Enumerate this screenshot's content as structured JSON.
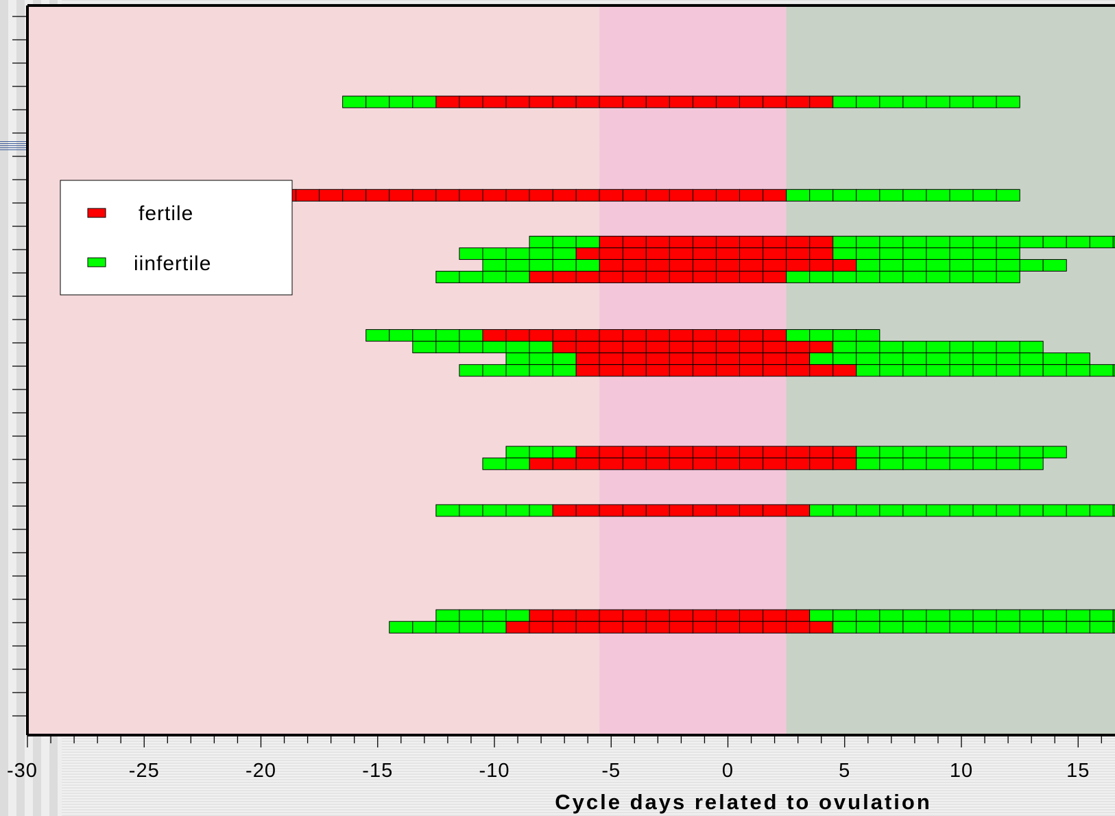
{
  "chart_data": {
    "type": "bar",
    "xlabel": "Cycle days related to ovulation",
    "xlim": [
      -30,
      17
    ],
    "x_ticks": [
      -30,
      -25,
      -20,
      -15,
      -10,
      -5,
      0,
      5,
      10,
      15
    ],
    "legend": {
      "placement": "upper-left",
      "entries": [
        {
          "label": "fertile",
          "color": "#ff0000"
        },
        {
          "label": "iinfertile",
          "color": "#00ff00"
        }
      ]
    },
    "background_zones": [
      {
        "from": -30,
        "to": -5.5,
        "color": "#f4d8da"
      },
      {
        "from": -5.5,
        "to": 2.5,
        "color": "#f4c6da"
      },
      {
        "from": 2.5,
        "to": 17,
        "color": "#c8d2c6"
      }
    ],
    "colors": {
      "fertile": "#ff0000",
      "infertile": "#00ff00",
      "axis": "#000000"
    },
    "rows": [
      {
        "row": 2,
        "segments": [
          {
            "start": -16,
            "end": -13,
            "type": "infertile"
          },
          {
            "start": -12,
            "end": 4,
            "type": "fertile"
          },
          {
            "start": 5,
            "end": 12,
            "type": "infertile"
          }
        ]
      },
      {
        "row": 6,
        "segments": [
          {
            "start": -27,
            "end": -23,
            "type": "infertile"
          },
          {
            "start": -22,
            "end": 2,
            "type": "fertile"
          },
          {
            "start": 3,
            "end": 12,
            "type": "infertile"
          }
        ]
      },
      {
        "row": 8,
        "segments": [
          {
            "start": -8,
            "end": -6,
            "type": "infertile"
          },
          {
            "start": -5,
            "end": 4,
            "type": "fertile"
          },
          {
            "start": 5,
            "end": 17,
            "type": "infertile"
          }
        ]
      },
      {
        "row": 8.5,
        "segments": [
          {
            "start": -11,
            "end": -7,
            "type": "infertile"
          },
          {
            "start": -6,
            "end": 4,
            "type": "fertile"
          },
          {
            "start": 5,
            "end": 12,
            "type": "infertile"
          }
        ]
      },
      {
        "row": 9,
        "segments": [
          {
            "start": -10,
            "end": -6,
            "type": "infertile"
          },
          {
            "start": -5,
            "end": 5,
            "type": "fertile"
          },
          {
            "start": 6,
            "end": 14,
            "type": "infertile"
          }
        ]
      },
      {
        "row": 9.5,
        "segments": [
          {
            "start": -12,
            "end": -9,
            "type": "infertile"
          },
          {
            "start": -8,
            "end": 2,
            "type": "fertile"
          },
          {
            "start": 3,
            "end": 12,
            "type": "infertile"
          }
        ]
      },
      {
        "row": 12,
        "segments": [
          {
            "start": -15,
            "end": -11,
            "type": "infertile"
          },
          {
            "start": -10,
            "end": 2,
            "type": "fertile"
          },
          {
            "start": 3,
            "end": 6,
            "type": "infertile"
          }
        ]
      },
      {
        "row": 12.5,
        "segments": [
          {
            "start": -13,
            "end": -8,
            "type": "infertile"
          },
          {
            "start": -7,
            "end": 4,
            "type": "fertile"
          },
          {
            "start": 5,
            "end": 13,
            "type": "infertile"
          }
        ]
      },
      {
        "row": 13,
        "segments": [
          {
            "start": -9,
            "end": -7,
            "type": "infertile"
          },
          {
            "start": -6,
            "end": 3,
            "type": "fertile"
          },
          {
            "start": 4,
            "end": 15,
            "type": "infertile"
          }
        ]
      },
      {
        "row": 13.5,
        "segments": [
          {
            "start": -11,
            "end": -7,
            "type": "infertile"
          },
          {
            "start": -6,
            "end": 5,
            "type": "fertile"
          },
          {
            "start": 6,
            "end": 17,
            "type": "infertile"
          }
        ]
      },
      {
        "row": 17,
        "segments": [
          {
            "start": -9,
            "end": -7,
            "type": "infertile"
          },
          {
            "start": -6,
            "end": 5,
            "type": "fertile"
          },
          {
            "start": 6,
            "end": 14,
            "type": "infertile"
          }
        ]
      },
      {
        "row": 17.5,
        "segments": [
          {
            "start": -10,
            "end": -9,
            "type": "infertile"
          },
          {
            "start": -8,
            "end": 5,
            "type": "fertile"
          },
          {
            "start": 6,
            "end": 13,
            "type": "infertile"
          }
        ]
      },
      {
        "row": 19.5,
        "segments": [
          {
            "start": -12,
            "end": -8,
            "type": "infertile"
          },
          {
            "start": -7,
            "end": 3,
            "type": "fertile"
          },
          {
            "start": 4,
            "end": 17,
            "type": "infertile"
          }
        ]
      },
      {
        "row": 24,
        "segments": [
          {
            "start": -12,
            "end": -9,
            "type": "infertile"
          },
          {
            "start": -8,
            "end": 3,
            "type": "fertile"
          },
          {
            "start": 4,
            "end": 17,
            "type": "infertile"
          }
        ]
      },
      {
        "row": 24.5,
        "segments": [
          {
            "start": -14,
            "end": -10,
            "type": "infertile"
          },
          {
            "start": -9,
            "end": 4,
            "type": "fertile"
          },
          {
            "start": 5,
            "end": 17,
            "type": "infertile"
          }
        ]
      }
    ]
  }
}
